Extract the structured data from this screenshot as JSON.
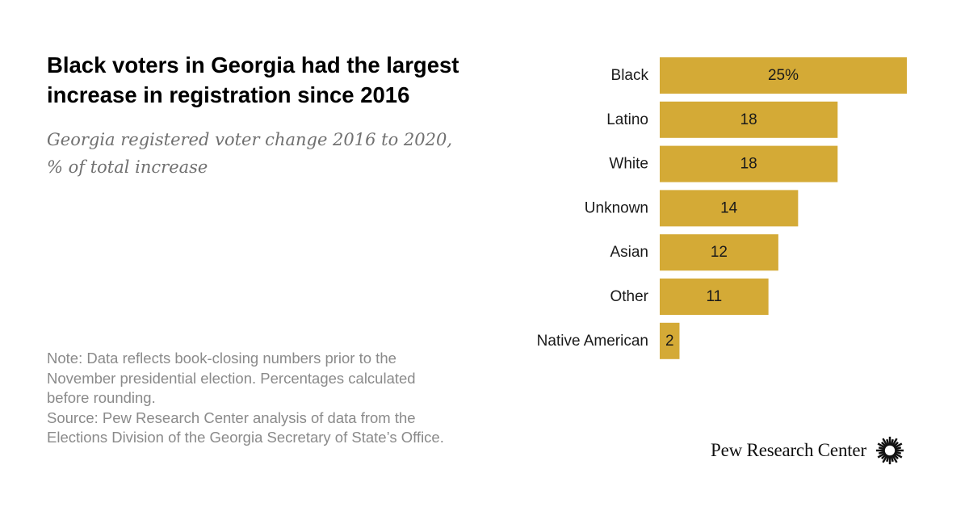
{
  "title_lines": [
    "Black voters in Georgia had the largest",
    "increase in registration since 2016"
  ],
  "subtitle_lines": [
    "Georgia registered voter change 2016 to 2020,",
    "% of total increase"
  ],
  "notes": {
    "note_lines": [
      "Note: Data reflects book-closing numbers prior to the",
      "November presidential election. Percentages calculated",
      "before rounding."
    ],
    "source_lines": [
      "Source: Pew Research Center analysis of data from the",
      "Elections Division of the Georgia Secretary of State’s Office."
    ]
  },
  "brand": {
    "name": "Pew Research Center",
    "logo_icon": "pew-sunburst-icon"
  },
  "colors": {
    "bar": "#D4AA36",
    "text": "#1a1a1a",
    "note_text": "#8a8a8a",
    "subtitle_text": "#707070"
  },
  "chart_data": {
    "type": "bar",
    "orientation": "horizontal",
    "categories": [
      "Black",
      "Latino",
      "White",
      "Unknown",
      "Asian",
      "Other",
      "Native American"
    ],
    "values": [
      25,
      18,
      18,
      14,
      12,
      11,
      2
    ],
    "value_labels": [
      "25%",
      "18",
      "18",
      "14",
      "12",
      "11",
      "2"
    ],
    "grid": false,
    "legend": "none"
  }
}
